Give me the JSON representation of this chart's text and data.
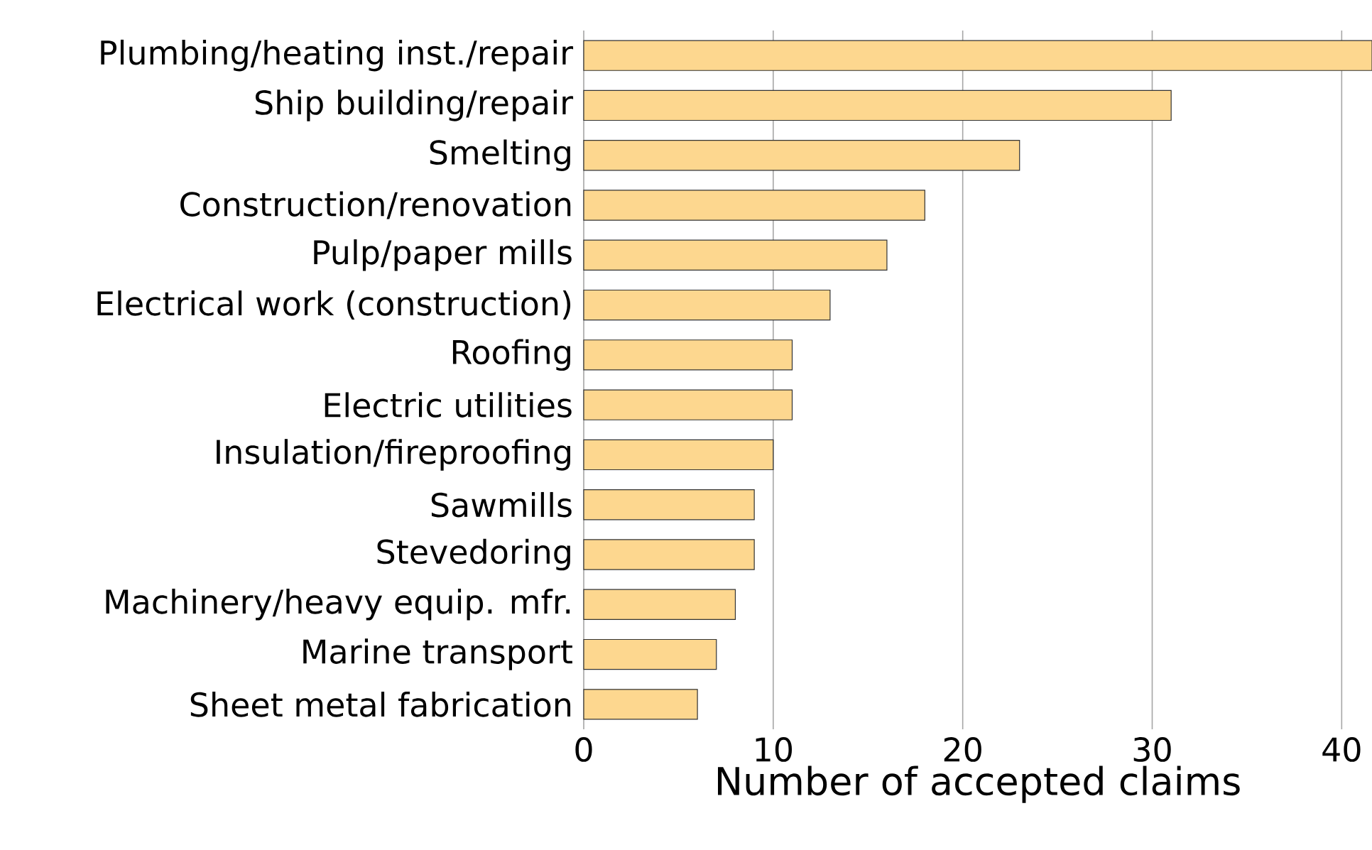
{
  "chart_data": {
    "type": "bar",
    "orientation": "horizontal",
    "xlabel": "Number of accepted claims",
    "categories": [
      "Plumbing/heating inst./repair",
      "Ship building/repair",
      "Smelting",
      "Construction/renovation",
      "Pulp/paper mills",
      "Electrical work (construction)",
      "Roofing",
      "Electric utilities",
      "Insulation/fireproofing",
      "Sawmills",
      "Stevedoring",
      "Machinery/heavy equip. mfr.",
      "Marine transport",
      "Sheet metal fabrication"
    ],
    "values": [
      41.6,
      31,
      23,
      18,
      16,
      13,
      11,
      11,
      10,
      9,
      9,
      8,
      7,
      6
    ],
    "color": "#fdd78f",
    "xlim": [
      0,
      41.6
    ],
    "xticks": [
      0,
      10,
      20,
      30,
      40
    ],
    "grid": "x"
  }
}
